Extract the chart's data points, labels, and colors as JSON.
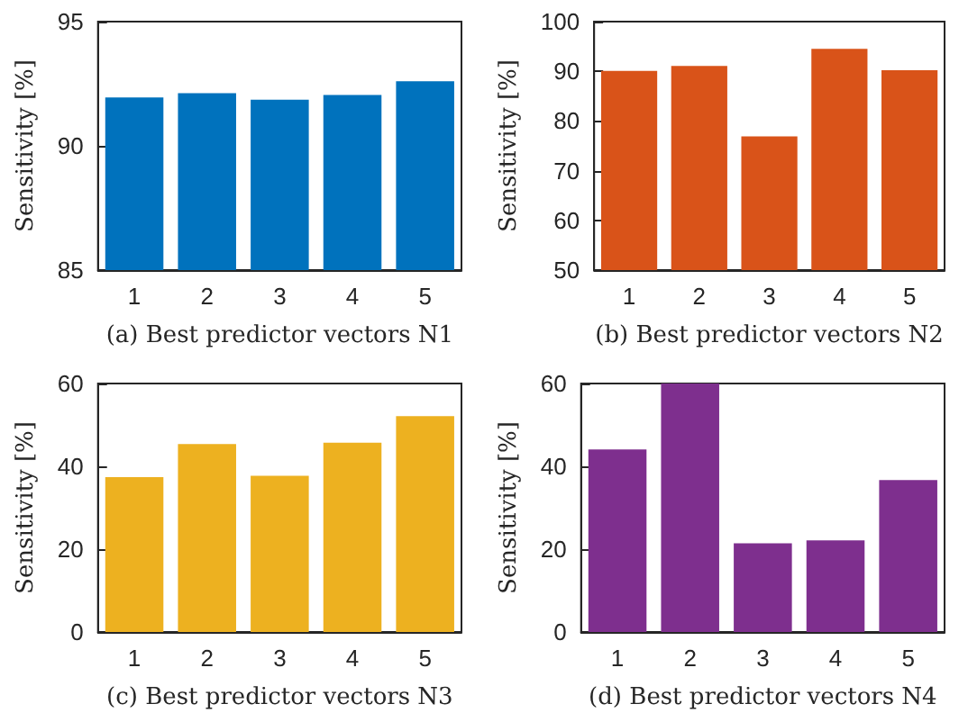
{
  "chart_data": [
    {
      "type": "bar",
      "xlabel": "(a) Best predictor vectors N1",
      "ylabel": "Sensitivity [%]",
      "categories": [
        "1",
        "2",
        "3",
        "4",
        "5"
      ],
      "values": [
        91.95,
        92.12,
        91.86,
        92.05,
        92.6
      ],
      "color": "#0072bd",
      "ylim": [
        85,
        95
      ],
      "yticks": [
        85,
        90,
        95
      ],
      "grid": false
    },
    {
      "type": "bar",
      "xlabel": "(b) Best predictor vectors N2",
      "ylabel": "Sensitivity [%]",
      "categories": [
        "1",
        "2",
        "3",
        "4",
        "5"
      ],
      "values": [
        90.1,
        91.1,
        76.9,
        94.5,
        90.2
      ],
      "color": "#d95319",
      "ylim": [
        50,
        100
      ],
      "yticks": [
        50,
        60,
        70,
        80,
        90,
        100
      ],
      "grid": false
    },
    {
      "type": "bar",
      "xlabel": "(c) Best predictor vectors N3",
      "ylabel": "Sensitivity [%]",
      "categories": [
        "1",
        "2",
        "3",
        "4",
        "5"
      ],
      "values": [
        37.4,
        45.4,
        37.7,
        45.7,
        52.1
      ],
      "color": "#edb120",
      "ylim": [
        0,
        60
      ],
      "yticks": [
        0,
        20,
        40,
        60
      ],
      "grid": false
    },
    {
      "type": "bar",
      "xlabel": "(d) Best predictor vectors N4",
      "ylabel": "Sensitivity [%]",
      "categories": [
        "1",
        "2",
        "3",
        "4",
        "5"
      ],
      "values": [
        44.1,
        60,
        21.4,
        22.1,
        36.7
      ],
      "color": "#7e2f8e",
      "ylim": [
        0,
        60
      ],
      "yticks": [
        0,
        20,
        40,
        60
      ],
      "grid": false
    }
  ]
}
